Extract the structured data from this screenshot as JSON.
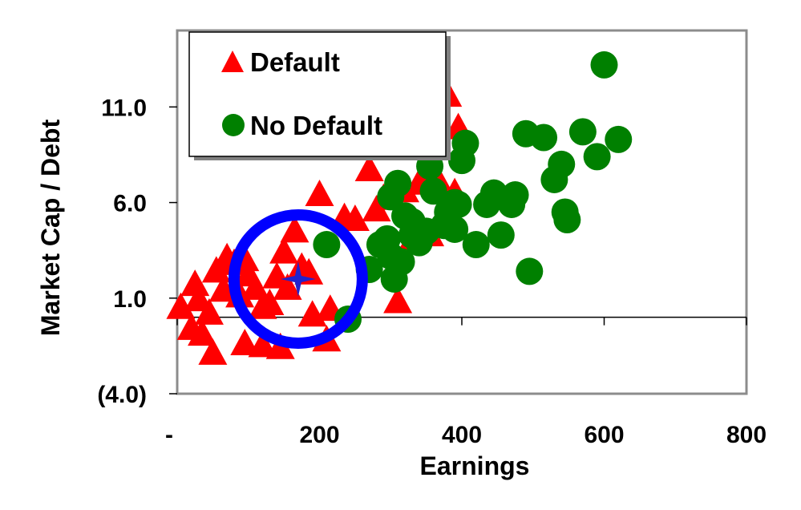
{
  "chart_data": {
    "type": "scatter",
    "title": "",
    "xlabel": "Earnings",
    "ylabel": "Market Cap / Debt",
    "xlim": [
      0,
      800
    ],
    "ylim": [
      -4,
      15
    ],
    "x_ticks": [
      {
        "value": 0,
        "label": "-"
      },
      {
        "value": 200,
        "label": "200"
      },
      {
        "value": 400,
        "label": "400"
      },
      {
        "value": 600,
        "label": "600"
      },
      {
        "value": 800,
        "label": "800"
      }
    ],
    "y_ticks": [
      {
        "value": 11,
        "label": "11.0"
      },
      {
        "value": 6,
        "label": "6.0"
      },
      {
        "value": 1,
        "label": "1.0"
      },
      {
        "value": -4,
        "label": "(4.0)"
      }
    ],
    "grid": false,
    "legend_position": "top-left",
    "series": [
      {
        "name": "Default",
        "marker": "triangle",
        "color": "#ff0000",
        "points": [
          [
            5,
            0.5
          ],
          [
            25,
            1.7
          ],
          [
            30,
            0.9
          ],
          [
            20,
            -0.6
          ],
          [
            35,
            -0.9
          ],
          [
            45,
            0.2
          ],
          [
            50,
            -1.9
          ],
          [
            55,
            2.4
          ],
          [
            65,
            1.4
          ],
          [
            70,
            3.1
          ],
          [
            80,
            2.8
          ],
          [
            88,
            1.1
          ],
          [
            95,
            3.0
          ],
          [
            100,
            2.2
          ],
          [
            110,
            1.5
          ],
          [
            120,
            0.5
          ],
          [
            130,
            0.7
          ],
          [
            140,
            2.1
          ],
          [
            150,
            3.4
          ],
          [
            155,
            1.5
          ],
          [
            165,
            4.5
          ],
          [
            175,
            2.6
          ],
          [
            185,
            2.3
          ],
          [
            190,
            0.1
          ],
          [
            200,
            6.4
          ],
          [
            210,
            -1.2
          ],
          [
            235,
            5.2
          ],
          [
            250,
            5.1
          ],
          [
            95,
            -1.4
          ],
          [
            145,
            -1.6
          ],
          [
            215,
            0.4
          ],
          [
            270,
            7.7
          ],
          [
            280,
            5.6
          ],
          [
            290,
            6.2
          ],
          [
            310,
            0.8
          ],
          [
            320,
            6.6
          ],
          [
            340,
            7.0
          ],
          [
            360,
            7.4
          ],
          [
            370,
            6.9
          ],
          [
            380,
            11.6
          ],
          [
            390,
            6.5
          ],
          [
            395,
            9.9
          ],
          [
            355,
            4.3
          ],
          [
            330,
            4.0
          ],
          [
            260,
            9.0
          ],
          [
            120,
            -1.5
          ]
        ]
      },
      {
        "name": "No Default",
        "marker": "circle",
        "color": "#008000",
        "points": [
          [
            210,
            3.8
          ],
          [
            240,
            -0.1
          ],
          [
            270,
            2.5
          ],
          [
            285,
            3.8
          ],
          [
            295,
            4.1
          ],
          [
            300,
            3.2
          ],
          [
            305,
            2.0
          ],
          [
            310,
            7.0
          ],
          [
            315,
            2.9
          ],
          [
            320,
            5.3
          ],
          [
            330,
            4.3
          ],
          [
            340,
            3.9
          ],
          [
            350,
            4.5
          ],
          [
            355,
            7.9
          ],
          [
            360,
            6.6
          ],
          [
            380,
            5.5
          ],
          [
            390,
            4.6
          ],
          [
            395,
            5.9
          ],
          [
            400,
            8.2
          ],
          [
            405,
            9.1
          ],
          [
            420,
            3.8
          ],
          [
            435,
            5.9
          ],
          [
            445,
            6.5
          ],
          [
            455,
            4.3
          ],
          [
            470,
            5.9
          ],
          [
            475,
            6.4
          ],
          [
            490,
            9.6
          ],
          [
            495,
            2.4
          ],
          [
            515,
            9.4
          ],
          [
            530,
            7.2
          ],
          [
            540,
            8.0
          ],
          [
            545,
            5.5
          ],
          [
            548,
            5.1
          ],
          [
            570,
            9.7
          ],
          [
            590,
            8.4
          ],
          [
            600,
            13.2
          ],
          [
            620,
            9.3
          ],
          [
            390,
            6.0
          ],
          [
            300,
            6.3
          ],
          [
            375,
            4.8
          ],
          [
            330,
            5.0
          ]
        ]
      }
    ],
    "highlight": {
      "shape": "circle",
      "color": "#0000ff",
      "center": [
        170,
        2.0
      ],
      "marker": "star"
    }
  }
}
